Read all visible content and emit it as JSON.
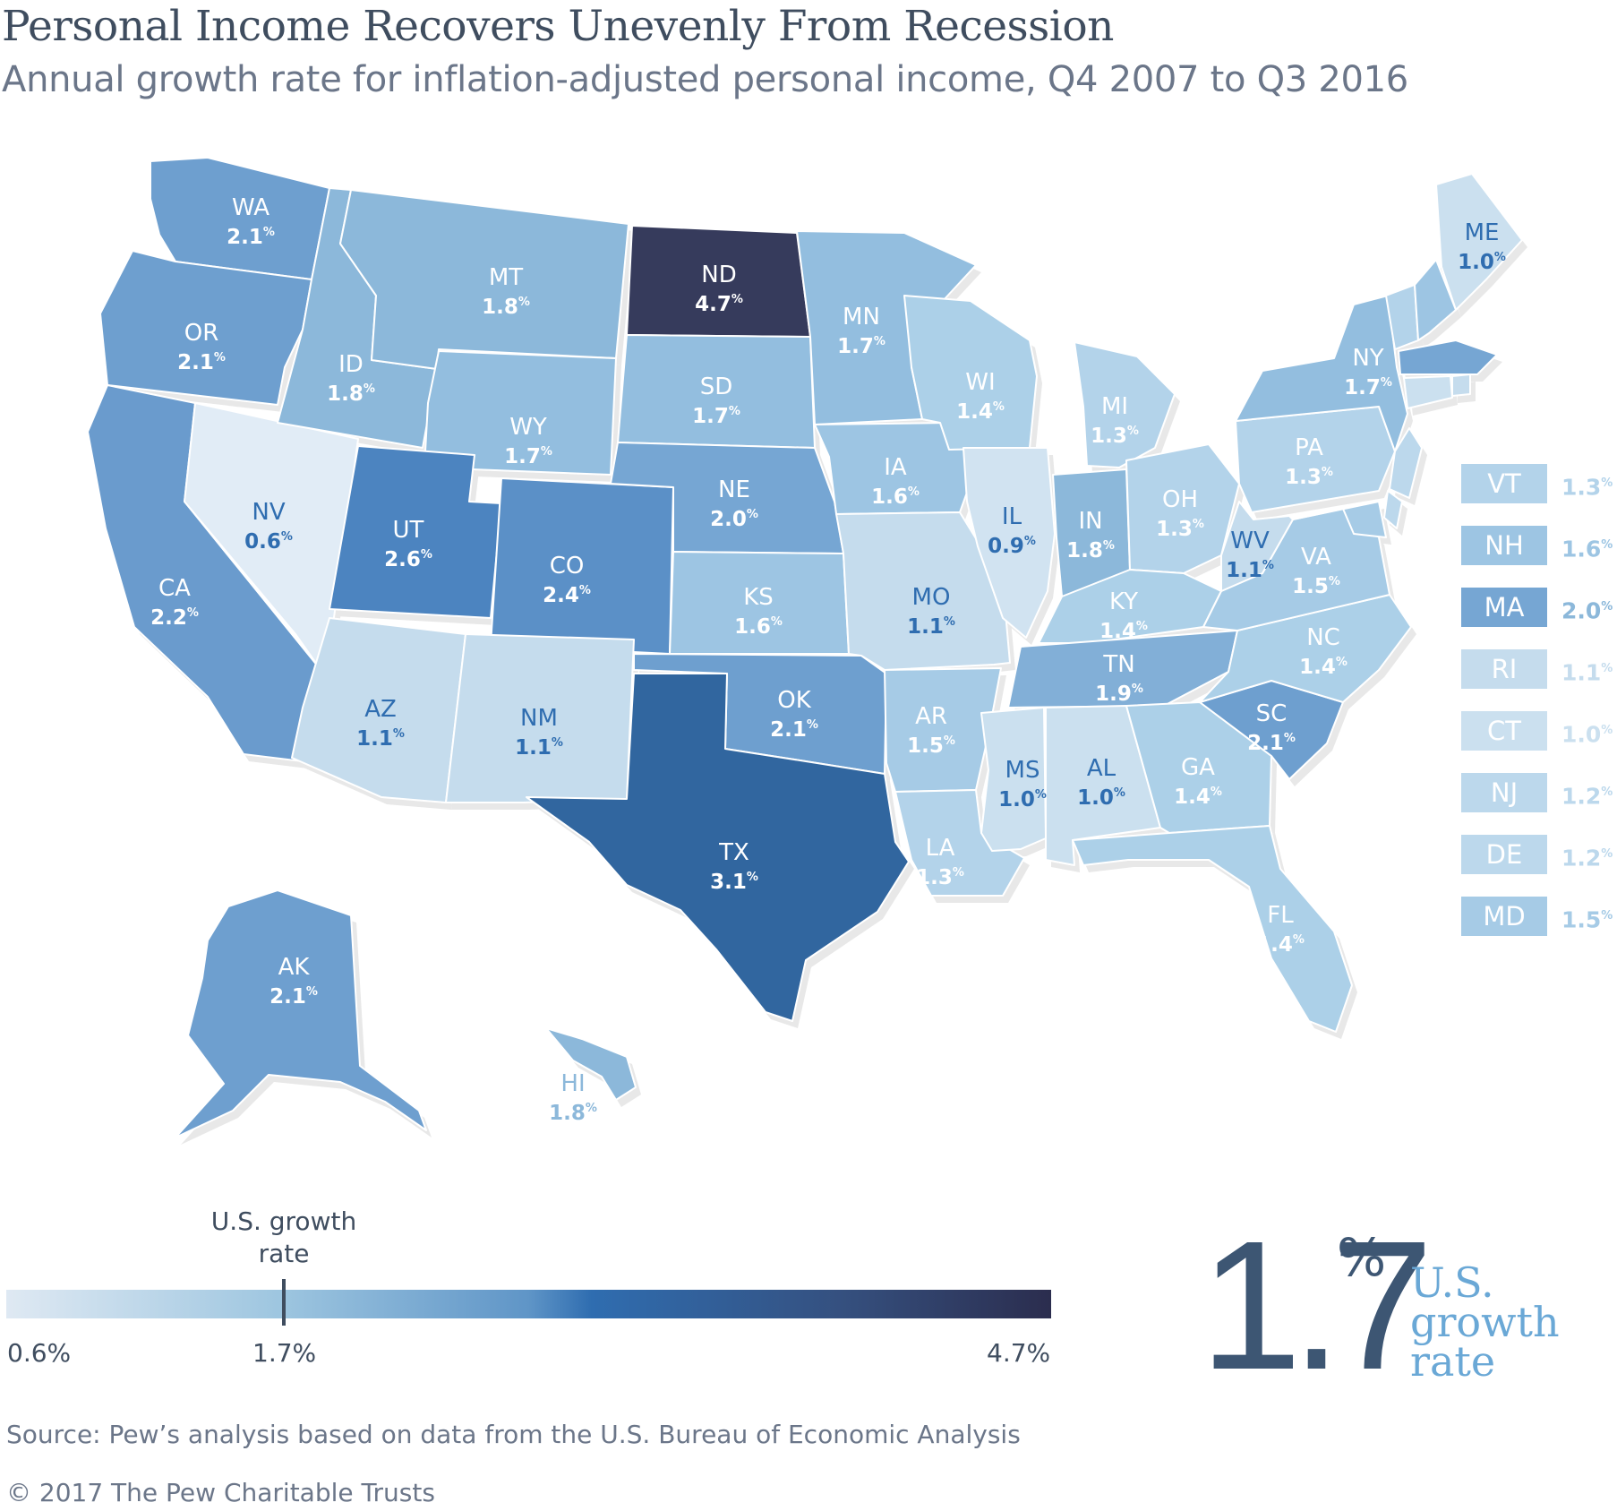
{
  "title": "Personal Income Recovers Unevenly From Recession",
  "subtitle": "Annual growth rate for inflation-adjusted personal income, Q4 2007 to Q3 2016",
  "percent_symbol": "%",
  "states": [
    {
      "abbr": "WA",
      "value": "2.1",
      "color": "#6e9fcf",
      "label_color": "#ffffff"
    },
    {
      "abbr": "OR",
      "value": "2.1",
      "color": "#6e9fcf",
      "label_color": "#ffffff"
    },
    {
      "abbr": "CA",
      "value": "2.2",
      "color": "#6a9bcd",
      "label_color": "#ffffff"
    },
    {
      "abbr": "NV",
      "value": "0.6",
      "color": "#e1ecf6",
      "label_color": "#2f6db0"
    },
    {
      "abbr": "ID",
      "value": "1.8",
      "color": "#8cb8da",
      "label_color": "#ffffff"
    },
    {
      "abbr": "MT",
      "value": "1.8",
      "color": "#8cb8da",
      "label_color": "#ffffff"
    },
    {
      "abbr": "WY",
      "value": "1.7",
      "color": "#93bedf",
      "label_color": "#ffffff"
    },
    {
      "abbr": "UT",
      "value": "2.6",
      "color": "#4c84c0",
      "label_color": "#ffffff"
    },
    {
      "abbr": "CO",
      "value": "2.4",
      "color": "#5b90c7",
      "label_color": "#ffffff"
    },
    {
      "abbr": "AZ",
      "value": "1.1",
      "color": "#c5dced",
      "label_color": "#2f6db0"
    },
    {
      "abbr": "NM",
      "value": "1.1",
      "color": "#c5dced",
      "label_color": "#2f6db0"
    },
    {
      "abbr": "ND",
      "value": "4.7",
      "color": "#363b5c",
      "label_color": "#ffffff"
    },
    {
      "abbr": "SD",
      "value": "1.7",
      "color": "#93bedf",
      "label_color": "#ffffff"
    },
    {
      "abbr": "NE",
      "value": "2.0",
      "color": "#76a6d3",
      "label_color": "#ffffff"
    },
    {
      "abbr": "KS",
      "value": "1.6",
      "color": "#9dc5e3",
      "label_color": "#ffffff"
    },
    {
      "abbr": "OK",
      "value": "2.1",
      "color": "#6e9fcf",
      "label_color": "#ffffff"
    },
    {
      "abbr": "TX",
      "value": "3.1",
      "color": "#31669f",
      "label_color": "#ffffff"
    },
    {
      "abbr": "MN",
      "value": "1.7",
      "color": "#93bedf",
      "label_color": "#ffffff"
    },
    {
      "abbr": "IA",
      "value": "1.6",
      "color": "#9dc5e3",
      "label_color": "#ffffff"
    },
    {
      "abbr": "MO",
      "value": "1.1",
      "color": "#c5dced",
      "label_color": "#2f6db0"
    },
    {
      "abbr": "AR",
      "value": "1.5",
      "color": "#a6cbe6",
      "label_color": "#ffffff"
    },
    {
      "abbr": "LA",
      "value": "1.3",
      "color": "#b3d3ea",
      "label_color": "#ffffff"
    },
    {
      "abbr": "WI",
      "value": "1.4",
      "color": "#acd0e8",
      "label_color": "#ffffff"
    },
    {
      "abbr": "IL",
      "value": "0.9",
      "color": "#d1e3f1",
      "label_color": "#2f6db0"
    },
    {
      "abbr": "MI",
      "value": "1.3",
      "color": "#b3d3ea",
      "label_color": "#ffffff"
    },
    {
      "abbr": "IN",
      "value": "1.8",
      "color": "#8cb8da",
      "label_color": "#ffffff"
    },
    {
      "abbr": "OH",
      "value": "1.3",
      "color": "#b3d3ea",
      "label_color": "#ffffff"
    },
    {
      "abbr": "KY",
      "value": "1.4",
      "color": "#acd0e8",
      "label_color": "#ffffff"
    },
    {
      "abbr": "TN",
      "value": "1.9",
      "color": "#82afd7",
      "label_color": "#ffffff"
    },
    {
      "abbr": "MS",
      "value": "1.0",
      "color": "#cbe0ef",
      "label_color": "#2f6db0"
    },
    {
      "abbr": "AL",
      "value": "1.0",
      "color": "#cbe0ef",
      "label_color": "#2f6db0"
    },
    {
      "abbr": "GA",
      "value": "1.4",
      "color": "#acd0e8",
      "label_color": "#ffffff"
    },
    {
      "abbr": "FL",
      "value": "1.4",
      "color": "#acd0e8",
      "label_color": "#ffffff"
    },
    {
      "abbr": "SC",
      "value": "2.1",
      "color": "#6e9fcf",
      "label_color": "#ffffff"
    },
    {
      "abbr": "NC",
      "value": "1.4",
      "color": "#acd0e8",
      "label_color": "#ffffff"
    },
    {
      "abbr": "VA",
      "value": "1.5",
      "color": "#a6cbe6",
      "label_color": "#ffffff"
    },
    {
      "abbr": "WV",
      "value": "1.1",
      "color": "#c5dced",
      "label_color": "#2f6db0"
    },
    {
      "abbr": "PA",
      "value": "1.3",
      "color": "#b3d3ea",
      "label_color": "#ffffff"
    },
    {
      "abbr": "NY",
      "value": "1.7",
      "color": "#93bedf",
      "label_color": "#ffffff"
    },
    {
      "abbr": "ME",
      "value": "1.0",
      "color": "#cbe0ef",
      "label_color": "#2f6db0"
    },
    {
      "abbr": "AK",
      "value": "2.1",
      "color": "#6e9fcf",
      "label_color": "#ffffff"
    },
    {
      "abbr": "HI",
      "value": "1.8",
      "color": "#8cb8da",
      "label_color": "#8cb8da"
    }
  ],
  "small_states": [
    {
      "abbr": "VT",
      "value": "1.3",
      "color": "#b3d3ea"
    },
    {
      "abbr": "NH",
      "value": "1.6",
      "color": "#9dc5e3"
    },
    {
      "abbr": "MA",
      "value": "2.0",
      "color": "#76a6d3"
    },
    {
      "abbr": "RI",
      "value": "1.1",
      "color": "#c5dced"
    },
    {
      "abbr": "CT",
      "value": "1.0",
      "color": "#cbe0ef"
    },
    {
      "abbr": "NJ",
      "value": "1.2",
      "color": "#bcd8ec"
    },
    {
      "abbr": "DE",
      "value": "1.2",
      "color": "#bcd8ec"
    },
    {
      "abbr": "MD",
      "value": "1.5",
      "color": "#a6cbe6"
    }
  ],
  "scale": {
    "min_label": "0.6%",
    "mid_label": "1.7%",
    "max_label": "4.7%",
    "marker_label": "U.S. growth rate",
    "us_rate": 1.7
  },
  "callout": {
    "number": "1.7",
    "percent": "%",
    "caption": "U.S. growth rate"
  },
  "source": "Source: Pew’s analysis based on data from the U.S. Bureau of Economic Analysis",
  "copyright": "© 2017 The Pew Charitable Trusts"
}
